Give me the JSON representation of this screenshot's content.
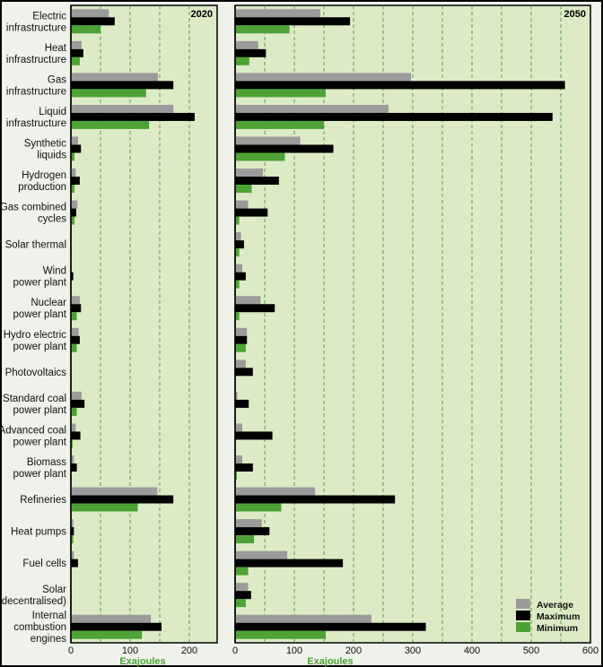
{
  "chart_data": {
    "type": "bar",
    "orientation": "horizontal",
    "xlabel": "Exajoules",
    "categories": [
      [
        "Electric",
        "infrastructure"
      ],
      [
        "Heat",
        "infrastructure"
      ],
      [
        "Gas",
        "infrastructure"
      ],
      [
        "Liquid",
        "infrastructure"
      ],
      [
        "Synthetic",
        "liquids"
      ],
      [
        "Hydrogen",
        "production"
      ],
      [
        "Gas combined",
        "cycles"
      ],
      [
        "Solar thermal"
      ],
      [
        "Wind",
        "power plant"
      ],
      [
        "Nuclear",
        "power plant"
      ],
      [
        "Hydro electric",
        "power plant"
      ],
      [
        "Photovoltaics"
      ],
      [
        "Standard coal",
        "power plant"
      ],
      [
        "Advanced coal",
        "power plant"
      ],
      [
        "Biomass",
        "power plant"
      ],
      [
        "Refineries"
      ],
      [
        "Heat pumps"
      ],
      [
        "Fuel cells"
      ],
      [
        "Solar",
        "(decentralised)"
      ],
      [
        "Internal",
        "combustion",
        "engines"
      ]
    ],
    "legend": [
      {
        "name": "Average",
        "color": "#9b9b9b"
      },
      {
        "name": "Maximum",
        "color": "#000000"
      },
      {
        "name": "Minimum",
        "color": "#4ea235"
      }
    ],
    "legend_position": "bottom-right",
    "panels": [
      {
        "title": "2020",
        "xlim": [
          0,
          250
        ],
        "ticks": [
          0,
          100,
          200
        ],
        "tick_labels": [
          "0",
          "100",
          "200"
        ],
        "grid": [
          50,
          100,
          150,
          200
        ],
        "series": [
          {
            "name": "Average",
            "values": [
              64,
              18,
              147,
              173,
              12,
              8,
              11,
              0,
              1,
              15,
              13,
              0,
              18,
              8,
              5,
              146,
              4,
              5,
              0,
              135
            ]
          },
          {
            "name": "Maximum",
            "values": [
              74,
              21,
              173,
              209,
              17,
              15,
              9,
              0,
              4,
              17,
              15,
              0,
              23,
              16,
              10,
              173,
              5,
              12,
              0,
              153
            ]
          },
          {
            "name": "Minimum",
            "values": [
              50,
              15,
              127,
              132,
              6,
              6,
              6,
              0,
              1,
              10,
              10,
              0,
              10,
              3,
              0,
              113,
              4,
              0,
              0,
              120
            ]
          }
        ]
      },
      {
        "title": "2050",
        "xlim": [
          0,
          600
        ],
        "ticks": [
          0,
          100,
          200,
          300,
          400,
          500,
          600
        ],
        "tick_labels": [
          "0",
          "100",
          "200",
          "300",
          "400",
          "500",
          "600"
        ],
        "grid": [
          50,
          100,
          150,
          200,
          250,
          300,
          350,
          400,
          450,
          500,
          550
        ],
        "series": [
          {
            "name": "Average",
            "values": [
              144,
              39,
              297,
              259,
              110,
              47,
              22,
              10,
              12,
              43,
              20,
              18,
              4,
              12,
              12,
              135,
              45,
              88,
              22,
              230
            ]
          },
          {
            "name": "Maximum",
            "values": [
              194,
              52,
              557,
              536,
              166,
              74,
              55,
              15,
              18,
              67,
              20,
              30,
              23,
              63,
              30,
              270,
              58,
              182,
              27,
              322
            ]
          },
          {
            "name": "Minimum",
            "values": [
              92,
              24,
              153,
              150,
              84,
              28,
              7,
              7,
              7,
              7,
              18,
              0,
              0,
              0,
              3,
              78,
              32,
              22,
              18,
              153
            ]
          }
        ]
      }
    ]
  }
}
